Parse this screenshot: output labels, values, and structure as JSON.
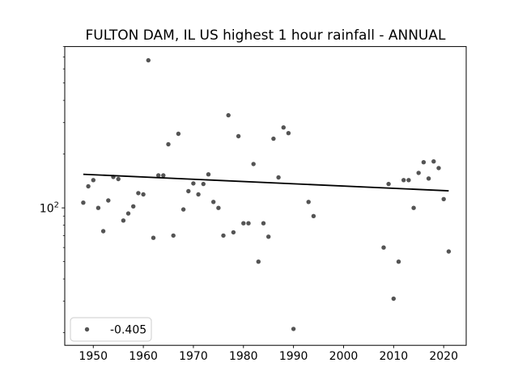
{
  "title": "FULTON DAM, IL US highest 1 hour rainfall - ANNUAL",
  "y_axis": {
    "base": "10",
    "exponent": "2"
  },
  "chart_data": {
    "type": "scatter",
    "title": "FULTON DAM, IL US highest 1 hour rainfall - ANNUAL",
    "xlabel": "",
    "ylabel": "",
    "x_scale": "linear",
    "y_scale": "log",
    "xlim": [
      1944.3,
      2024.5
    ],
    "ylim": [
      17,
      800
    ],
    "x_ticks": [
      1950,
      1960,
      1970,
      1980,
      1990,
      2000,
      2010,
      2020
    ],
    "y_major_ticks": [
      {
        "value": 100,
        "label": "10^2"
      }
    ],
    "y_minor_ticks": [
      20,
      30,
      40,
      50,
      60,
      70,
      80,
      90,
      200,
      300,
      400,
      500,
      600,
      700,
      800
    ],
    "grid": false,
    "legend": {
      "position": "lower left",
      "entries": [
        {
          "marker": "dot",
          "label": "-0.405"
        }
      ]
    },
    "series": [
      {
        "name": "annual highest 1 hour rainfall",
        "type": "scatter",
        "color": "#545454",
        "points": [
          [
            1948,
            107
          ],
          [
            1949,
            132
          ],
          [
            1950,
            143
          ],
          [
            1951,
            100
          ],
          [
            1952,
            74
          ],
          [
            1953,
            110
          ],
          [
            1954,
            149
          ],
          [
            1955,
            145
          ],
          [
            1956,
            85
          ],
          [
            1957,
            93
          ],
          [
            1958,
            102
          ],
          [
            1959,
            121
          ],
          [
            1960,
            119
          ],
          [
            1961,
            670
          ],
          [
            1962,
            68
          ],
          [
            1963,
            152
          ],
          [
            1964,
            152
          ],
          [
            1965,
            227
          ],
          [
            1966,
            70
          ],
          [
            1967,
            260
          ],
          [
            1968,
            98
          ],
          [
            1969,
            124
          ],
          [
            1970,
            137
          ],
          [
            1971,
            119
          ],
          [
            1972,
            136
          ],
          [
            1973,
            154
          ],
          [
            1974,
            108
          ],
          [
            1975,
            100
          ],
          [
            1976,
            70
          ],
          [
            1977,
            330
          ],
          [
            1978,
            73
          ],
          [
            1979,
            252
          ],
          [
            1980,
            82
          ],
          [
            1981,
            82
          ],
          [
            1982,
            176
          ],
          [
            1983,
            50
          ],
          [
            1984,
            82
          ],
          [
            1985,
            69
          ],
          [
            1986,
            244
          ],
          [
            1987,
            148
          ],
          [
            1988,
            282
          ],
          [
            1989,
            262
          ],
          [
            1990,
            21
          ],
          [
            1993,
            108
          ],
          [
            1994,
            90
          ],
          [
            2008,
            60
          ],
          [
            2009,
            136
          ],
          [
            2010,
            31
          ],
          [
            2011,
            50
          ],
          [
            2012,
            143
          ],
          [
            2013,
            143
          ],
          [
            2014,
            100
          ],
          [
            2015,
            157
          ],
          [
            2016,
            180
          ],
          [
            2017,
            146
          ],
          [
            2018,
            182
          ],
          [
            2019,
            167
          ],
          [
            2020,
            112
          ],
          [
            2021,
            57
          ]
        ]
      },
      {
        "name": "trend",
        "type": "line",
        "color": "#000000",
        "slope": -0.405,
        "points": [
          [
            1948,
            154.2
          ],
          [
            2021,
            124.6
          ]
        ]
      }
    ]
  },
  "colors": {
    "background": "#ffffff",
    "scatter": "#545454",
    "trend": "#000000",
    "legend_border": "#cccccc"
  }
}
